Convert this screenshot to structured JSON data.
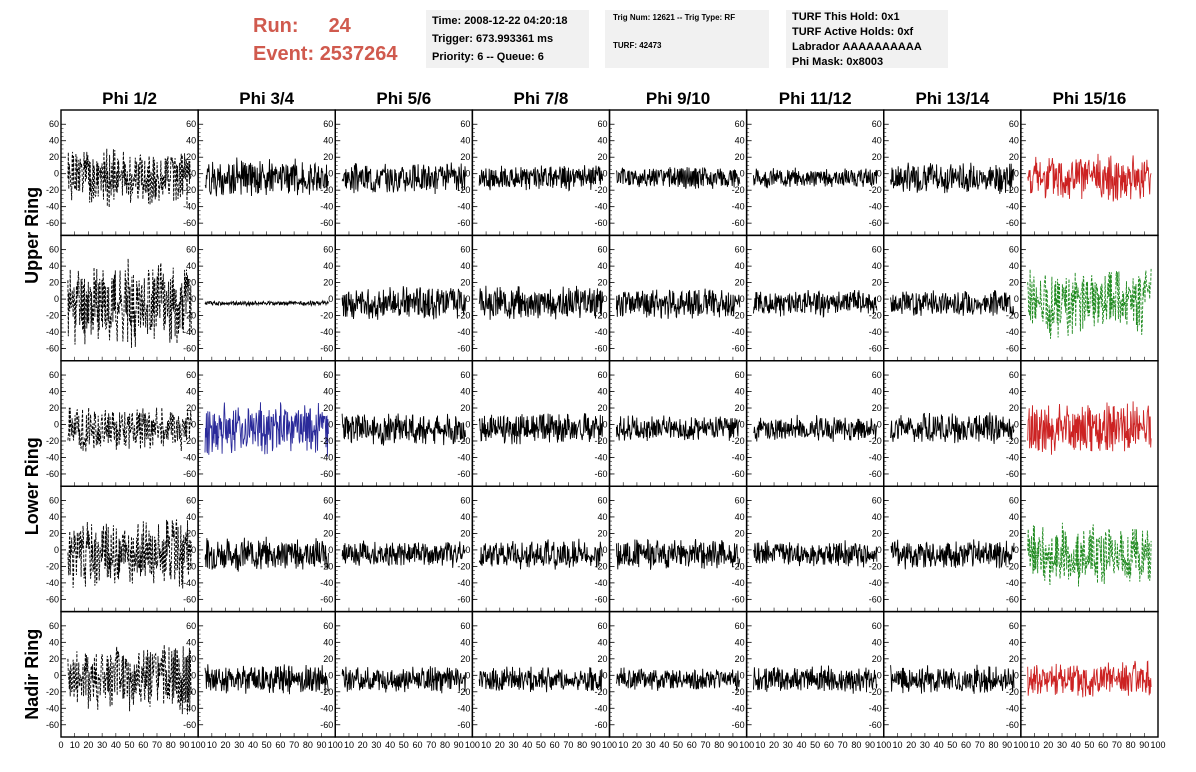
{
  "header": {
    "run_label": "Run:",
    "run_value": "24",
    "event_label": "Event:",
    "event_value": "2537264",
    "box1": {
      "line1": "Time: 2008-12-22 04:20:18",
      "line2": "Trigger: 673.993361 ms",
      "line3": "Priority: 6 -- Queue: 6"
    },
    "box2": {
      "line1": "Trig Num: 12621 -- Trig Type: RF",
      "line2": "TURF: 42473"
    },
    "box3": {
      "line1": "TURF This Hold: 0x1",
      "line2": "TURF Active Holds: 0xf",
      "line3": "Labrador AAAAAAAAAA",
      "line4": "Phi Mask: 0x8003"
    }
  },
  "colors": {
    "run_event": "#d05a4e",
    "box_bg": "#f1f1f1",
    "trace_default": "#000000",
    "trace_red": "#cc2222",
    "trace_green": "#1f8a1f",
    "trace_blue": "#2a2a9a"
  },
  "chart_data": {
    "type": "line",
    "columns": [
      "Phi 1/2",
      "Phi 3/4",
      "Phi 5/6",
      "Phi 7/8",
      "Phi 9/10",
      "Phi 11/12",
      "Phi 13/14",
      "Phi 15/16"
    ],
    "ring_labels": [
      {
        "label": "Upper Ring",
        "rows": [
          0,
          1
        ]
      },
      {
        "label": "Lower Ring",
        "rows": [
          2,
          3
        ]
      },
      {
        "label": "Nadir Ring",
        "rows": [
          4
        ]
      }
    ],
    "rows": 5,
    "xlim": [
      0,
      100
    ],
    "ylim": [
      -70,
      70
    ],
    "x_ticks": [
      0,
      10,
      20,
      30,
      40,
      50,
      60,
      70,
      80,
      90,
      100
    ],
    "x_tick_labels": [
      "0",
      "10",
      "20",
      "30",
      "40",
      "50",
      "60",
      "70",
      "80",
      "90",
      "100"
    ],
    "y_ticks": [
      -60,
      -40,
      -20,
      0,
      20,
      40,
      60
    ],
    "y_tick_labels": [
      "-60",
      "-40",
      "-20",
      "0",
      "20",
      "40",
      "60"
    ],
    "panels": [
      [
        {
          "color": "#000000",
          "style": "dashed",
          "amp": 38,
          "seed": 1
        },
        {
          "color": "#000000",
          "style": "solid",
          "amp": 25,
          "seed": 2
        },
        {
          "color": "#000000",
          "style": "solid",
          "amp": 20,
          "seed": 3
        },
        {
          "color": "#000000",
          "style": "solid",
          "amp": 17,
          "seed": 4
        },
        {
          "color": "#000000",
          "style": "solid",
          "amp": 15,
          "seed": 5
        },
        {
          "color": "#000000",
          "style": "solid",
          "amp": 13,
          "seed": 6
        },
        {
          "color": "#000000",
          "style": "solid",
          "amp": 20,
          "seed": 7
        },
        {
          "color": "#cc2222",
          "style": "solid",
          "amp": 30,
          "seed": 8
        }
      ],
      [
        {
          "color": "#000000",
          "style": "dashed",
          "amp": 55,
          "seed": 11
        },
        {
          "color": "#000000",
          "style": "solid",
          "amp": 3,
          "seed": 12
        },
        {
          "color": "#000000",
          "style": "solid",
          "amp": 22,
          "seed": 13
        },
        {
          "color": "#000000",
          "style": "solid",
          "amp": 22,
          "seed": 14
        },
        {
          "color": "#000000",
          "style": "solid",
          "amp": 20,
          "seed": 15
        },
        {
          "color": "#000000",
          "style": "solid",
          "amp": 17,
          "seed": 16
        },
        {
          "color": "#000000",
          "style": "solid",
          "amp": 17,
          "seed": 17
        },
        {
          "color": "#1f8a1f",
          "style": "dashed",
          "amp": 45,
          "seed": 18
        }
      ],
      [
        {
          "color": "#000000",
          "style": "dashed",
          "amp": 30,
          "seed": 21
        },
        {
          "color": "#2a2a9a",
          "style": "solid",
          "amp": 35,
          "seed": 22
        },
        {
          "color": "#000000",
          "style": "solid",
          "amp": 22,
          "seed": 23
        },
        {
          "color": "#000000",
          "style": "solid",
          "amp": 20,
          "seed": 24
        },
        {
          "color": "#000000",
          "style": "solid",
          "amp": 17,
          "seed": 25
        },
        {
          "color": "#000000",
          "style": "solid",
          "amp": 17,
          "seed": 26
        },
        {
          "color": "#000000",
          "style": "solid",
          "amp": 20,
          "seed": 27
        },
        {
          "color": "#cc2222",
          "style": "solid",
          "amp": 35,
          "seed": 28
        }
      ],
      [
        {
          "color": "#000000",
          "style": "dashed",
          "amp": 45,
          "seed": 31
        },
        {
          "color": "#000000",
          "style": "solid",
          "amp": 22,
          "seed": 32
        },
        {
          "color": "#000000",
          "style": "solid",
          "amp": 17,
          "seed": 33
        },
        {
          "color": "#000000",
          "style": "solid",
          "amp": 20,
          "seed": 34
        },
        {
          "color": "#000000",
          "style": "solid",
          "amp": 20,
          "seed": 35
        },
        {
          "color": "#000000",
          "style": "solid",
          "amp": 17,
          "seed": 36
        },
        {
          "color": "#000000",
          "style": "solid",
          "amp": 20,
          "seed": 37
        },
        {
          "color": "#1f8a1f",
          "style": "dashed",
          "amp": 40,
          "seed": 38
        }
      ],
      [
        {
          "color": "#000000",
          "style": "dashed",
          "amp": 45,
          "seed": 41
        },
        {
          "color": "#000000",
          "style": "solid",
          "amp": 20,
          "seed": 42
        },
        {
          "color": "#000000",
          "style": "solid",
          "amp": 17,
          "seed": 43
        },
        {
          "color": "#000000",
          "style": "solid",
          "amp": 17,
          "seed": 44
        },
        {
          "color": "#000000",
          "style": "solid",
          "amp": 15,
          "seed": 45
        },
        {
          "color": "#000000",
          "style": "solid",
          "amp": 18,
          "seed": 46
        },
        {
          "color": "#000000",
          "style": "solid",
          "amp": 18,
          "seed": 47
        },
        {
          "color": "#cc2222",
          "style": "solid",
          "amp": 25,
          "seed": 48
        }
      ]
    ]
  }
}
